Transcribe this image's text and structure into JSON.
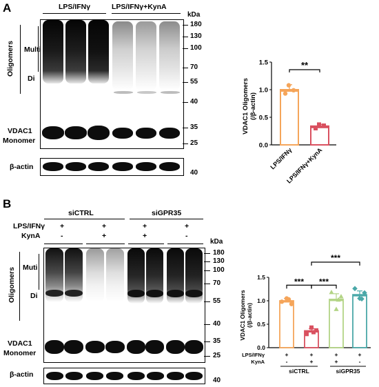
{
  "panelA": {
    "letter": "A",
    "groups": [
      "LPS/IFNγ",
      "LPS/IFNγ+KynA"
    ],
    "kda": "kDa",
    "mw_markers": [
      "180",
      "130",
      "100",
      "70",
      "55",
      "40",
      "35",
      "25"
    ],
    "actin_marker": "40",
    "oligomers_label": "Oligomers",
    "multi_label": "Multi",
    "di_label": "Di",
    "monomer_label_1": "VDAC1",
    "monomer_label_2": "Monomer",
    "actin_label": "β-actin"
  },
  "panelB": {
    "letter": "B",
    "groups": [
      "siCTRL",
      "siGPR35"
    ],
    "row1_label": "LPS/IFNγ",
    "row2_label": "KynA",
    "row1_signs": [
      "+",
      "+",
      "+",
      "+"
    ],
    "row2_signs": [
      "-",
      "+",
      "+",
      "-"
    ],
    "kda": "kDa",
    "mw_markers": [
      "180",
      "130",
      "100",
      "70",
      "55",
      "40",
      "35",
      "25"
    ],
    "actin_marker": "40",
    "oligomers_label": "Oligomers",
    "multi_label": "Muti",
    "di_label": "Di",
    "monomer_label_1": "VDAC1",
    "monomer_label_2": "Monomer",
    "actin_label": "β-actin"
  },
  "chart_data": [
    {
      "type": "bar",
      "categories": [
        "LPS/IFNγ",
        "LPS/IFNγ+KynA"
      ],
      "values": [
        1.0,
        0.34
      ],
      "errors": [
        0.09,
        0.03
      ],
      "points": [
        [
          1.08,
          0.93,
          0.99
        ],
        [
          0.37,
          0.3,
          0.35
        ]
      ],
      "colors": [
        "#f5a55a",
        "#d9505f"
      ],
      "ylabel": "VDAC1 Oligomers (/β-actin)",
      "yticks": [
        "0.0",
        "0.5",
        "1.0",
        "1.5"
      ],
      "ylim": [
        0,
        1.5
      ],
      "significance": "**"
    },
    {
      "type": "bar",
      "categories": [
        "siCTRL +/-",
        "siCTRL +/+",
        "siGPR35 +/+",
        "siGPR35 +/-"
      ],
      "values": [
        1.0,
        0.36,
        1.03,
        1.13
      ],
      "errors": [
        0.05,
        0.05,
        0.12,
        0.08
      ],
      "points": [
        [
          0.98,
          1.05,
          0.93,
          1.03
        ],
        [
          0.29,
          0.43,
          0.37,
          0.33
        ],
        [
          1.18,
          0.82,
          1.09,
          1.02
        ],
        [
          1.26,
          1.05,
          1.17,
          1.04
        ]
      ],
      "colors": [
        "#f5a55a",
        "#d9505f",
        "#b3d485",
        "#4aa8a8"
      ],
      "ylabel": "VDAC1 Oligomers (/β-actin)",
      "yticks": [
        "0.0",
        "0.5",
        "1.0",
        "1.5"
      ],
      "ylim": [
        0,
        1.5
      ],
      "row_labels": [
        "LPS/IFNγ",
        "KynA"
      ],
      "row1_signs": [
        "+",
        "+",
        "+",
        "+"
      ],
      "row2_signs": [
        "-",
        "+",
        "+",
        "-"
      ],
      "group_labels": [
        "siCTRL",
        "siGPR35"
      ],
      "significance": [
        "***",
        "***",
        "***"
      ]
    }
  ]
}
